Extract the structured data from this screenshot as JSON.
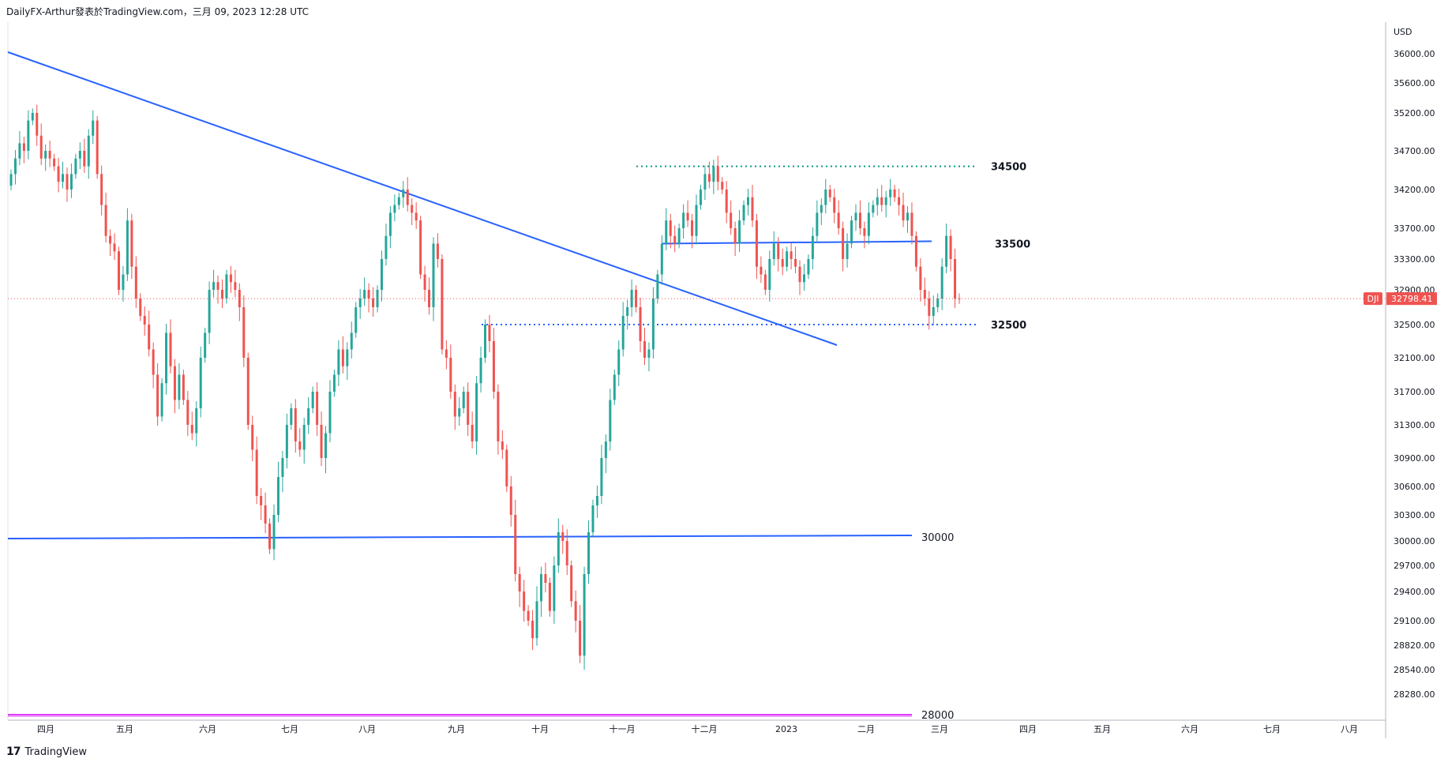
{
  "header": {
    "text": "DailyFX-Arthur發表於TradingView.com，三月 09, 2023 12:28 UTC"
  },
  "footer": {
    "logo": "17",
    "brand": "TradingView"
  },
  "colors": {
    "up": "#26a69a",
    "down": "#ef5350",
    "trend": "#2962ff",
    "support_dotted": "#2962ff",
    "resistance_dotted": "#089981",
    "base_line": "#e040fb",
    "price_tag": "#ef5350"
  },
  "chart_data": {
    "type": "candlestick",
    "symbol": "DJI",
    "last_price": "32798.41",
    "currency": "USD",
    "y_ticks": [
      "36000.00",
      "35600.00",
      "35200.00",
      "34700.00",
      "34200.00",
      "33700.00",
      "33300.00",
      "32900.00",
      "32500.00",
      "32100.00",
      "31700.00",
      "31300.00",
      "30900.00",
      "30600.00",
      "30300.00",
      "30000.00",
      "29700.00",
      "29400.00",
      "29100.00",
      "28820.00",
      "28540.00",
      "28280.00"
    ],
    "x_ticks": [
      "四月",
      "五月",
      "六月",
      "七月",
      "八月",
      "九月",
      "十月",
      "十一月",
      "十二月",
      "2023",
      "二月",
      "三月",
      "四月",
      "五月",
      "六月",
      "七月",
      "八月"
    ],
    "levels": [
      {
        "label": "34500",
        "value": 34500,
        "style": "dotted",
        "bold": true
      },
      {
        "label": "33500",
        "value": 33500,
        "style": "solid",
        "bold": true
      },
      {
        "label": "32500",
        "value": 32500,
        "style": "dotted",
        "bold": true
      },
      {
        "label": "30000",
        "value": 30000,
        "style": "solid",
        "bold": false
      },
      {
        "label": "28000",
        "value": 28000,
        "style": "solid",
        "bold": false
      }
    ],
    "trendline": {
      "from": {
        "date": "2022-03-29",
        "value": 35850
      },
      "to": {
        "date": "2022-12-21",
        "value": 32190
      }
    },
    "closes": [
      34400,
      34600,
      34800,
      34700,
      35100,
      35200,
      34900,
      34600,
      34700,
      34600,
      34500,
      34300,
      34400,
      34200,
      34400,
      34600,
      34700,
      34500,
      34900,
      35100,
      34400,
      34000,
      33600,
      33500,
      33400,
      32900,
      33100,
      33800,
      33200,
      32800,
      32600,
      32500,
      32200,
      31900,
      31400,
      31800,
      32400,
      32000,
      31600,
      31900,
      31600,
      31300,
      31200,
      31500,
      32100,
      32400,
      32900,
      33000,
      32900,
      32800,
      33100,
      33000,
      32900,
      32700,
      32100,
      31300,
      31000,
      30500,
      30400,
      30200,
      29900,
      30300,
      30700,
      30900,
      31300,
      31500,
      31100,
      31000,
      31300,
      31500,
      31700,
      31300,
      30900,
      31200,
      31700,
      31900,
      32200,
      32000,
      32200,
      32400,
      32700,
      32800,
      32900,
      32800,
      32700,
      32900,
      33300,
      33600,
      33900,
      34000,
      34100,
      34200,
      34000,
      33900,
      33800,
      33100,
      32900,
      32700,
      33500,
      33300,
      32200,
      32100,
      31700,
      31400,
      31500,
      31700,
      31300,
      31100,
      31800,
      32100,
      32500,
      32300,
      31700,
      31100,
      31000,
      30600,
      30300,
      29600,
      29400,
      29200,
      29100,
      28900,
      29300,
      29600,
      29500,
      29200,
      29700,
      30100,
      30000,
      29700,
      29300,
      29100,
      28700,
      29600,
      30100,
      30400,
      30500,
      30900,
      31100,
      31600,
      31900,
      32200,
      32600,
      32700,
      32900,
      32700,
      32300,
      32100,
      32200,
      32800,
      33100,
      33500,
      33800,
      33600,
      33500,
      33700,
      33900,
      33800,
      33600,
      34000,
      34200,
      34400,
      34300,
      34500,
      34300,
      34200,
      33900,
      33700,
      33500,
      33800,
      34000,
      34100,
      33800,
      33200,
      33100,
      32900,
      33300,
      33500,
      33300,
      33200,
      33400,
      33300,
      33200,
      33000,
      33100,
      33300,
      33600,
      33900,
      34000,
      34200,
      34100,
      33900,
      33700,
      33300,
      33500,
      33800,
      33900,
      33700,
      33600,
      33900,
      34000,
      34100,
      34000,
      34100,
      34200,
      34100,
      34000,
      33800,
      33900,
      33600,
      33200,
      32900,
      32800,
      32600,
      32700,
      32800,
      33200,
      33600,
      33300,
      32800,
      32798
    ]
  }
}
